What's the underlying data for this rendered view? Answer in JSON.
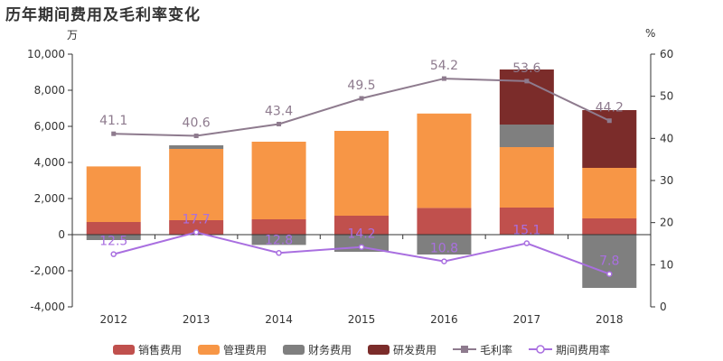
{
  "title": "历年期间费用及毛利率变化",
  "left_unit": "万",
  "right_unit": "%",
  "chart_data": {
    "type": "bar",
    "stacked": true,
    "categories": [
      "2012",
      "2013",
      "2014",
      "2015",
      "2016",
      "2017",
      "2018"
    ],
    "ylim": [
      -4000,
      10000
    ],
    "y_ticks": [
      "10,000",
      "8,000",
      "6,000",
      "4,000",
      "2,000",
      "0",
      "-2,000",
      "-4,000"
    ],
    "y2lim": [
      0,
      60
    ],
    "y2_ticks": [
      "60",
      "50",
      "40",
      "30",
      "20",
      "10",
      "0"
    ],
    "series": [
      {
        "name": "销售费用",
        "color": "#c0504d",
        "values": [
          700,
          800,
          850,
          1050,
          1480,
          1500,
          900
        ]
      },
      {
        "name": "管理费用",
        "color": "#f79646",
        "values": [
          3080,
          3950,
          4300,
          4700,
          5230,
          3350,
          2800
        ]
      },
      {
        "name": "财务费用",
        "color": "#7f7f7f",
        "values": [
          -300,
          200,
          -570,
          -950,
          -1100,
          1250,
          -2950
        ]
      },
      {
        "name": "研发费用",
        "color": "#7b2c2a",
        "values": [
          0,
          0,
          0,
          0,
          0,
          3050,
          3200
        ]
      }
    ],
    "lines": [
      {
        "name": "毛利率",
        "color": "#8e7b8e",
        "marker": "square",
        "values": [
          41.1,
          40.6,
          43.4,
          49.5,
          54.2,
          53.6,
          44.2
        ],
        "labels": [
          "41.1",
          "40.6",
          "43.4",
          "49.5",
          "54.2",
          "53.6",
          "44.2"
        ]
      },
      {
        "name": "期间费用率",
        "color": "#a96fe0",
        "marker": "circle",
        "values": [
          12.5,
          17.7,
          12.8,
          14.2,
          10.8,
          15.1,
          7.8
        ],
        "labels": [
          "12.5",
          "17.7",
          "12.8",
          "14.2",
          "10.8",
          "15.1",
          "7.8"
        ]
      }
    ],
    "legend_position": "bottom"
  }
}
